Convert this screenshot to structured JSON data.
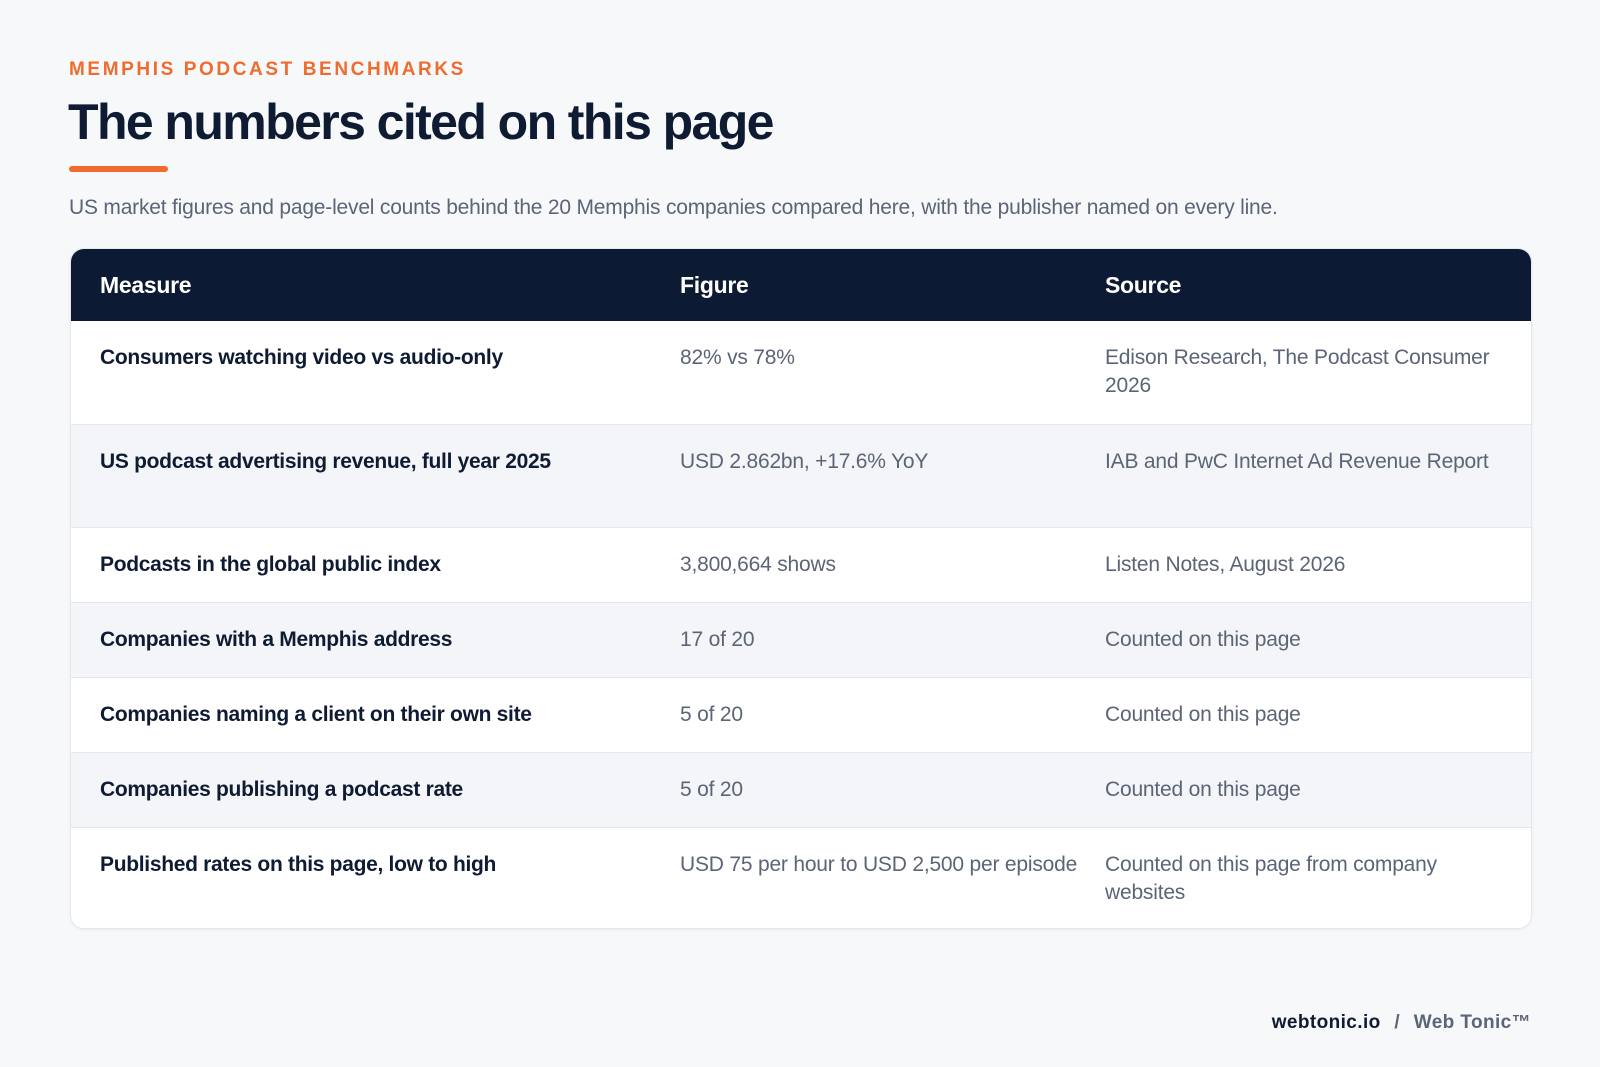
{
  "header": {
    "eyebrow": "MEMPHIS PODCAST BENCHMARKS",
    "title": "The numbers cited on this page",
    "subtitle": "US market figures and page-level counts behind the 20 Memphis companies compared here, with the publisher named on every line."
  },
  "table": {
    "columns": [
      "Measure",
      "Figure",
      "Source"
    ],
    "rows": [
      {
        "measure": "Consumers watching video vs audio-only",
        "figure": "82% vs 78%",
        "source": "Edison Research, The Podcast Consumer 2026"
      },
      {
        "measure": "US podcast advertising revenue, full year 2025",
        "figure": "USD 2.862bn, +17.6% YoY",
        "source": "IAB and PwC Internet Ad Revenue Report"
      },
      {
        "measure": "Podcasts in the global public index",
        "figure": "3,800,664 shows",
        "source": "Listen Notes, August 2026"
      },
      {
        "measure": "Companies with a Memphis address",
        "figure": "17 of 20",
        "source": "Counted on this page"
      },
      {
        "measure": "Companies naming a client on their own site",
        "figure": "5 of 20",
        "source": "Counted on this page"
      },
      {
        "measure": "Companies publishing a podcast rate",
        "figure": "5 of 20",
        "source": "Counted on this page"
      },
      {
        "measure": "Published rates on this page, low to high",
        "figure": "USD 75 per hour to USD 2,500 per episode",
        "source": "Counted on this page from company websites"
      }
    ]
  },
  "footer": {
    "domain": "webtonic.io",
    "separator": "/",
    "brand": "Web Tonic™"
  },
  "colors": {
    "accent": "#ef6c2e",
    "navy": "#0c1a33",
    "muted_text": "#5b6577",
    "background": "#f6f8fa",
    "alt_row": "#f3f5f8"
  }
}
